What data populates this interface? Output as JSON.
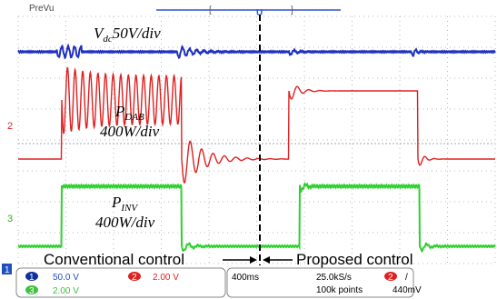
{
  "header": {
    "mode": "PreVu",
    "trigger_marker": "U"
  },
  "annotations": {
    "vdc": {
      "symbol": "V",
      "subscript": "dc",
      "scale": "50V/div"
    },
    "pdab": {
      "symbol": "P",
      "subscript": "DAB",
      "scale": "400W/div"
    },
    "pinv": {
      "symbol": "P",
      "subscript": "INV",
      "scale": "400W/div"
    },
    "conventional": "Conventional control",
    "proposed": "Proposed control"
  },
  "markers": {
    "ch1": "1",
    "ch2": "2",
    "ch3": "3"
  },
  "status": {
    "ch1": {
      "id": "1",
      "scale": "50.0 V"
    },
    "ch2": {
      "id": "2",
      "scale": "2.00 V"
    },
    "ch3": {
      "id": "3",
      "scale": "2.00 V"
    },
    "timebase": "400ms",
    "sample_rate": "25.0kS/s",
    "record": "100k points",
    "trigger": {
      "source": "2",
      "slope": "/",
      "level": "440mV"
    }
  }
}
